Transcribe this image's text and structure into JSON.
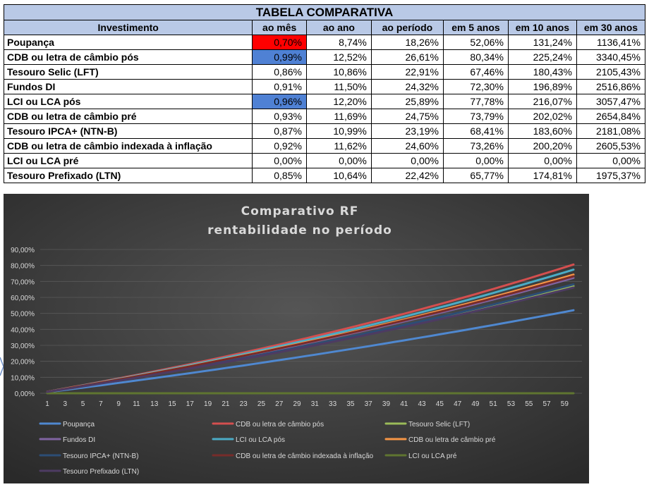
{
  "table": {
    "title": "TABELA COMPARATIVA",
    "headers": [
      "Investimento",
      "ao mês",
      "ao ano",
      "ao período",
      "em 5 anos",
      "em 10 anos",
      "em 30 anos"
    ],
    "rows": [
      {
        "name": "Poupança",
        "cells": [
          "0,70%",
          "8,74%",
          "18,26%",
          "52,06%",
          "131,24%",
          "1136,41%"
        ],
        "highlight": "#ff0000"
      },
      {
        "name": "CDB ou letra de câmbio pós",
        "cells": [
          "0,99%",
          "12,52%",
          "26,61%",
          "80,34%",
          "225,24%",
          "3340,45%"
        ],
        "highlight": "#4f81d4"
      },
      {
        "name": "Tesouro Selic (LFT)",
        "cells": [
          "0,86%",
          "10,86%",
          "22,91%",
          "67,46%",
          "180,43%",
          "2105,43%"
        ],
        "highlight": ""
      },
      {
        "name": "Fundos DI",
        "cells": [
          "0,91%",
          "11,50%",
          "24,32%",
          "72,30%",
          "196,89%",
          "2516,86%"
        ],
        "highlight": ""
      },
      {
        "name": "LCI ou LCA pós",
        "cells": [
          "0,96%",
          "12,20%",
          "25,89%",
          "77,78%",
          "216,07%",
          "3057,47%"
        ],
        "highlight": "#4f81d4"
      },
      {
        "name": "CDB ou letra de câmbio pré",
        "cells": [
          "0,93%",
          "11,69%",
          "24,75%",
          "73,79%",
          "202,02%",
          "2654,84%"
        ],
        "highlight": ""
      },
      {
        "name": "Tesouro IPCA+ (NTN-B)",
        "cells": [
          "0,87%",
          "10,99%",
          "23,19%",
          "68,41%",
          "183,60%",
          "2181,08%"
        ],
        "highlight": ""
      },
      {
        "name": "CDB ou letra de câmbio indexada à inflação",
        "cells": [
          "0,92%",
          "11,62%",
          "24,60%",
          "73,26%",
          "200,20%",
          "2605,53%"
        ],
        "highlight": ""
      },
      {
        "name": "LCI ou LCA pré",
        "cells": [
          "0,00%",
          "0,00%",
          "0,00%",
          "0,00%",
          "0,00%",
          "0,00%"
        ],
        "highlight": ""
      },
      {
        "name": "Tesouro Prefixado (LTN)",
        "cells": [
          "0,85%",
          "10,64%",
          "22,42%",
          "65,77%",
          "174,81%",
          "1975,37%"
        ],
        "highlight": ""
      }
    ]
  },
  "chart_data": {
    "type": "line",
    "title": "Comparativo RF",
    "subtitle": "rentabilidade no período",
    "xlabel": "",
    "ylabel": "",
    "x_range": [
      1,
      60
    ],
    "x_ticks": [
      "1",
      "3",
      "5",
      "7",
      "9",
      "11",
      "13",
      "15",
      "17",
      "19",
      "21",
      "23",
      "25",
      "27",
      "29",
      "31",
      "33",
      "35",
      "37",
      "39",
      "41",
      "43",
      "45",
      "47",
      "49",
      "51",
      "53",
      "55",
      "57",
      "59"
    ],
    "y_ticks": [
      "0,00%",
      "10,00%",
      "20,00%",
      "30,00%",
      "40,00%",
      "50,00%",
      "60,00%",
      "70,00%",
      "80,00%",
      "90,00%"
    ],
    "ylim": [
      0,
      90
    ],
    "grid": true,
    "legend_position": "bottom",
    "background": "#3f3f3f",
    "series": [
      {
        "name": "Poupança",
        "monthly_rate_pct": 0.7,
        "end_value_pct": 52.06,
        "color": "#4f88d0"
      },
      {
        "name": "CDB ou letra de câmbio pós",
        "monthly_rate_pct": 0.99,
        "end_value_pct": 80.34,
        "color": "#d44f4f"
      },
      {
        "name": "Tesouro Selic (LFT)",
        "monthly_rate_pct": 0.86,
        "end_value_pct": 67.46,
        "color": "#9bbb59"
      },
      {
        "name": "Fundos DI",
        "monthly_rate_pct": 0.91,
        "end_value_pct": 72.3,
        "color": "#8064a2"
      },
      {
        "name": "LCI ou LCA pós",
        "monthly_rate_pct": 0.96,
        "end_value_pct": 77.78,
        "color": "#4bacc6"
      },
      {
        "name": "CDB ou letra de câmbio pré",
        "monthly_rate_pct": 0.93,
        "end_value_pct": 73.79,
        "color": "#f79646"
      },
      {
        "name": "Tesouro IPCA+ (NTN-B)",
        "monthly_rate_pct": 0.87,
        "end_value_pct": 68.41,
        "color": "#2c4d75"
      },
      {
        "name": "CDB ou letra de câmbio indexada à inflação",
        "monthly_rate_pct": 0.92,
        "end_value_pct": 73.26,
        "color": "#772c2a"
      },
      {
        "name": "LCI ou LCA pré",
        "monthly_rate_pct": 0.0,
        "end_value_pct": 0.0,
        "color": "#5f7530"
      },
      {
        "name": "Tesouro Prefixado (LTN)",
        "monthly_rate_pct": 0.85,
        "end_value_pct": 65.77,
        "color": "#4d3b62"
      }
    ]
  }
}
